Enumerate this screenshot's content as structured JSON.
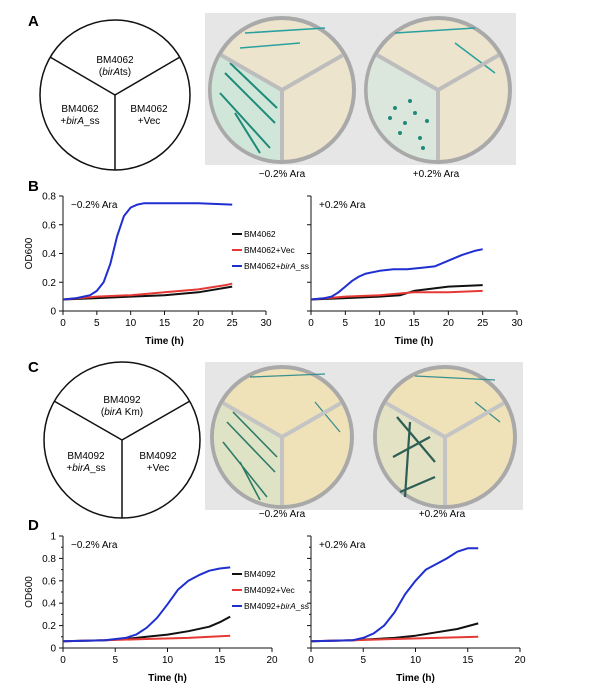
{
  "panels": {
    "A": {
      "letter": "A",
      "sectors": {
        "top": {
          "line1": "BM4062",
          "line2_pre": "(",
          "line2_ital": "birA",
          "line2_post": "ts)"
        },
        "left": {
          "line1": "BM4062",
          "line2_pre": "+",
          "line2_ital": "birA",
          "line2_post": "_ss"
        },
        "right": {
          "line1": "BM4062",
          "line2": "+Vec"
        }
      },
      "captions": [
        "−0.2% Ara",
        "+0.2% Ara"
      ]
    },
    "C": {
      "letter": "C",
      "sectors": {
        "top": {
          "line1": "BM4092",
          "line2_pre": "(",
          "line2_ital": "birA",
          "line2_post": " Km)"
        },
        "left": {
          "line1": "BM4092",
          "line2_pre": "+",
          "line2_ital": "birA",
          "line2_post": "_ss"
        },
        "right": {
          "line1": "BM4092",
          "line2": "+Vec"
        }
      },
      "captions": [
        "−0.2% Ara",
        "+0.2% Ara"
      ]
    }
  },
  "chart_data": [
    {
      "panel": "B",
      "type": "line",
      "title": "−0.2% Ara",
      "xlabel": "Time (h)",
      "ylabel": "OD600",
      "xlim": [
        0,
        30
      ],
      "ylim": [
        0,
        0.8
      ],
      "xticks": [
        0,
        5,
        10,
        15,
        20,
        25,
        30
      ],
      "yticks": [
        0,
        0.2,
        0.4,
        0.6,
        0.8
      ],
      "yticklabels": [
        "0",
        "0.2",
        "0.4",
        "0.6",
        "0.8"
      ],
      "legend": "right",
      "series": [
        {
          "name": "BM4062",
          "color": "#111111",
          "x": [
            0,
            5,
            10,
            15,
            20,
            25
          ],
          "y": [
            0.08,
            0.09,
            0.1,
            0.11,
            0.13,
            0.17
          ]
        },
        {
          "name": "BM4062+Vec",
          "color": "#e53935",
          "x": [
            0,
            5,
            10,
            15,
            20,
            24,
            25
          ],
          "y": [
            0.08,
            0.1,
            0.11,
            0.13,
            0.15,
            0.18,
            0.19
          ]
        },
        {
          "name": "BM4062+birA_ss",
          "color": "#1f2fd0",
          "x": [
            0,
            2,
            4,
            5,
            6,
            7,
            8,
            9,
            10,
            11,
            12,
            13,
            15,
            20,
            25
          ],
          "y": [
            0.08,
            0.09,
            0.11,
            0.14,
            0.2,
            0.33,
            0.52,
            0.66,
            0.72,
            0.74,
            0.75,
            0.75,
            0.75,
            0.75,
            0.74
          ]
        }
      ]
    },
    {
      "panel": "B2",
      "type": "line",
      "title": "+0.2% Ara",
      "xlabel": "Time (h)",
      "ylabel": "",
      "xlim": [
        0,
        30
      ],
      "ylim": [
        0,
        0.8
      ],
      "xticks": [
        0,
        5,
        10,
        15,
        20,
        25,
        30
      ],
      "yticks": [
        0,
        0.2,
        0.4,
        0.6,
        0.8
      ],
      "yticklabels": [
        "",
        "",
        "",
        "",
        ""
      ],
      "series": [
        {
          "name": "BM4062",
          "color": "#111111",
          "x": [
            0,
            5,
            10,
            13,
            15,
            20,
            25
          ],
          "y": [
            0.08,
            0.09,
            0.1,
            0.11,
            0.14,
            0.17,
            0.18
          ]
        },
        {
          "name": "BM4062+Vec",
          "color": "#e53935",
          "x": [
            0,
            5,
            10,
            15,
            20,
            25
          ],
          "y": [
            0.08,
            0.1,
            0.11,
            0.13,
            0.13,
            0.14
          ]
        },
        {
          "name": "BM4062+birA_ss",
          "color": "#1f2fd0",
          "x": [
            0,
            2,
            3,
            4,
            5,
            6,
            7,
            8,
            10,
            12,
            14,
            16,
            18,
            20,
            22,
            24,
            25
          ],
          "y": [
            0.08,
            0.09,
            0.1,
            0.13,
            0.17,
            0.21,
            0.24,
            0.26,
            0.28,
            0.29,
            0.29,
            0.3,
            0.31,
            0.35,
            0.39,
            0.42,
            0.43
          ]
        }
      ]
    },
    {
      "panel": "D",
      "type": "line",
      "title": "−0.2% Ara",
      "xlabel": "Time (h)",
      "ylabel": "OD600",
      "xlim": [
        0,
        20
      ],
      "ylim": [
        0,
        1
      ],
      "xticks": [
        0,
        5,
        10,
        15,
        20
      ],
      "yticks": [
        0,
        0.2,
        0.4,
        0.6,
        0.8,
        1
      ],
      "yticklabels": [
        "0",
        "0.2",
        "0.4",
        "0.6",
        "0.8",
        "1"
      ],
      "yminor": [
        0.1,
        0.3,
        0.5,
        0.7,
        0.9
      ],
      "legend": "right",
      "series": [
        {
          "name": "BM4092",
          "color": "#111111",
          "x": [
            0,
            4,
            6,
            8,
            10,
            12,
            14,
            15,
            16
          ],
          "y": [
            0.06,
            0.07,
            0.08,
            0.1,
            0.12,
            0.15,
            0.19,
            0.23,
            0.28
          ]
        },
        {
          "name": "BM4092+Vec",
          "color": "#e53935",
          "x": [
            0,
            4,
            8,
            12,
            16
          ],
          "y": [
            0.06,
            0.07,
            0.08,
            0.09,
            0.11
          ]
        },
        {
          "name": "BM4092+birA_ss",
          "color": "#1f2fd0",
          "x": [
            0,
            4,
            6,
            7,
            8,
            9,
            10,
            11,
            12,
            13,
            14,
            15,
            16
          ],
          "y": [
            0.06,
            0.07,
            0.09,
            0.12,
            0.18,
            0.27,
            0.39,
            0.52,
            0.6,
            0.65,
            0.69,
            0.71,
            0.72
          ]
        }
      ]
    },
    {
      "panel": "D2",
      "type": "line",
      "title": "+0.2% Ara",
      "xlabel": "Time (h)",
      "ylabel": "",
      "xlim": [
        0,
        20
      ],
      "ylim": [
        0,
        1
      ],
      "xticks": [
        0,
        5,
        10,
        15,
        20
      ],
      "yticks": [
        0,
        0.2,
        0.4,
        0.6,
        0.8,
        1
      ],
      "yticklabels": [
        "",
        "",
        "",
        "",
        "",
        ""
      ],
      "yminor": [
        0.1,
        0.3,
        0.5,
        0.7,
        0.9
      ],
      "series": [
        {
          "name": "BM4092",
          "color": "#111111",
          "x": [
            0,
            4,
            8,
            10,
            12,
            14,
            16
          ],
          "y": [
            0.06,
            0.07,
            0.09,
            0.11,
            0.14,
            0.17,
            0.22
          ]
        },
        {
          "name": "BM4092+Vec",
          "color": "#e53935",
          "x": [
            0,
            4,
            8,
            12,
            16
          ],
          "y": [
            0.06,
            0.07,
            0.08,
            0.09,
            0.1
          ]
        },
        {
          "name": "BM4092+birA_ss",
          "color": "#1f2fd0",
          "x": [
            0,
            4,
            5,
            6,
            7,
            8,
            9,
            10,
            11,
            12,
            13,
            14,
            15,
            16
          ],
          "y": [
            0.06,
            0.07,
            0.09,
            0.13,
            0.2,
            0.32,
            0.48,
            0.6,
            0.7,
            0.75,
            0.8,
            0.86,
            0.89,
            0.89
          ]
        }
      ]
    }
  ]
}
